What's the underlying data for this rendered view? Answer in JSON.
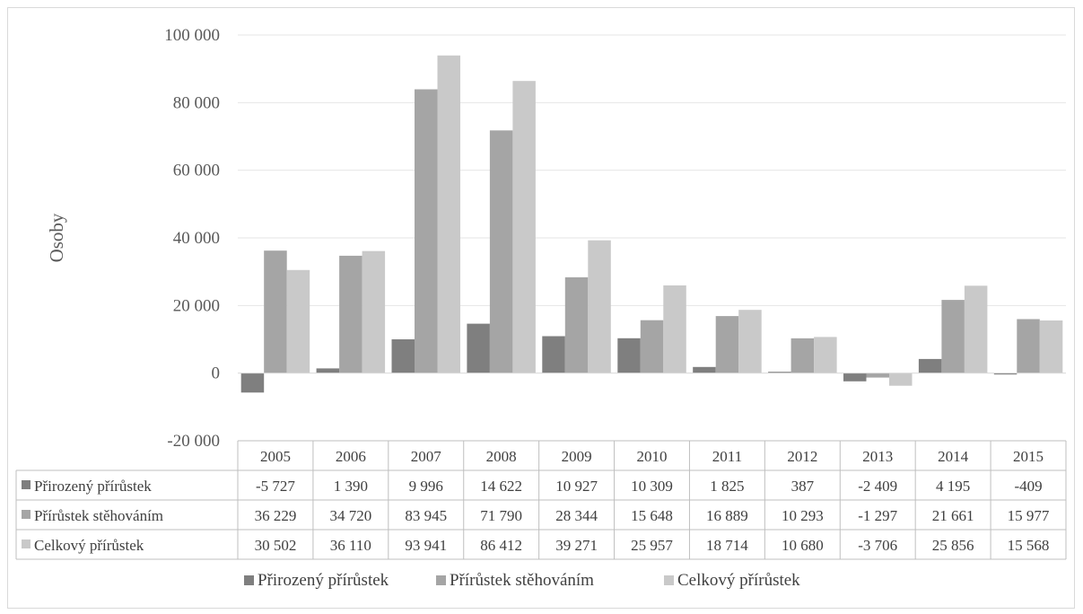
{
  "chart_data": {
    "type": "bar",
    "ylabel": "Osoby",
    "ylim": [
      -20000,
      100000
    ],
    "y_ticks": [
      "100 000",
      "80 000",
      "60 000",
      "40 000",
      "20 000",
      "0",
      "-20 000"
    ],
    "y_tick_values": [
      100000,
      80000,
      60000,
      40000,
      20000,
      0,
      -20000
    ],
    "grid": true,
    "legend_position": "bottom",
    "data_table": true,
    "categories": [
      "2005",
      "2006",
      "2007",
      "2008",
      "2009",
      "2010",
      "2011",
      "2012",
      "2013",
      "2014",
      "2015"
    ],
    "series": [
      {
        "name": "Přirozený přírůstek",
        "color": "#7f7f7f",
        "values": [
          -5727,
          1390,
          9996,
          14622,
          10927,
          10309,
          1825,
          387,
          -2409,
          4195,
          -409
        ],
        "labels": [
          "-5 727",
          "1 390",
          "9 996",
          "14 622",
          "10 927",
          "10 309",
          "1 825",
          "387",
          "-2 409",
          "4 195",
          "-409"
        ]
      },
      {
        "name": "Přírůstek stěhováním",
        "color": "#a5a5a5",
        "values": [
          36229,
          34720,
          83945,
          71790,
          28344,
          15648,
          16889,
          10293,
          -1297,
          21661,
          15977
        ],
        "labels": [
          "36 229",
          "34 720",
          "83 945",
          "71 790",
          "28 344",
          "15 648",
          "16 889",
          "10 293",
          "-1 297",
          "21 661",
          "15 977"
        ]
      },
      {
        "name": "Celkový přírůstek",
        "color": "#c9c9c9",
        "values": [
          30502,
          36110,
          93941,
          86412,
          39271,
          25957,
          18714,
          10680,
          -3706,
          25856,
          15568
        ],
        "labels": [
          "30 502",
          "36 110",
          "93 941",
          "86 412",
          "39 271",
          "25 957",
          "18 714",
          "10 680",
          "-3 706",
          "25 856",
          "15 568"
        ]
      }
    ]
  }
}
